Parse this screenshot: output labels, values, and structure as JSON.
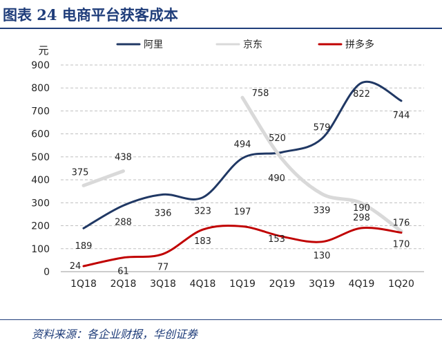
{
  "figure": {
    "title": "图表 24   电商平台获客成本",
    "source": "资料来源：各企业财报，华创证券"
  },
  "chart_data": {
    "type": "line",
    "unit": "元",
    "categories": [
      "1Q18",
      "2Q18",
      "3Q18",
      "4Q18",
      "1Q19",
      "2Q19",
      "3Q19",
      "4Q19",
      "1Q20"
    ],
    "ylim": [
      0,
      900
    ],
    "yticks": [
      0,
      100,
      200,
      300,
      400,
      500,
      600,
      700,
      800,
      900
    ],
    "grid": true,
    "legend_position": "top",
    "series": [
      {
        "name": "阿里",
        "color": "#203864",
        "values": [
          189,
          288,
          336,
          323,
          494,
          520,
          579,
          822,
          744
        ]
      },
      {
        "name": "京东",
        "color": "#d9d9d9",
        "segments": [
          {
            "values": [
              375,
              438
            ],
            "start": 0
          },
          {
            "values": [
              758,
              490,
              339,
              298,
              176
            ],
            "start": 4
          }
        ]
      },
      {
        "name": "拼多多",
        "color": "#c00000",
        "values": [
          24,
          61,
          77,
          183,
          197,
          153,
          130,
          190,
          170
        ]
      }
    ],
    "data_labels": {
      "ali": [
        "189",
        "288",
        "336",
        "323",
        "494",
        "520",
        "579",
        "822",
        "744"
      ],
      "jd": [
        "375",
        "438",
        "758",
        "490",
        "339",
        "298",
        "176"
      ],
      "pdd": [
        "24",
        "61",
        "77",
        "183",
        "197",
        "153",
        "130",
        "190",
        "170"
      ]
    }
  }
}
